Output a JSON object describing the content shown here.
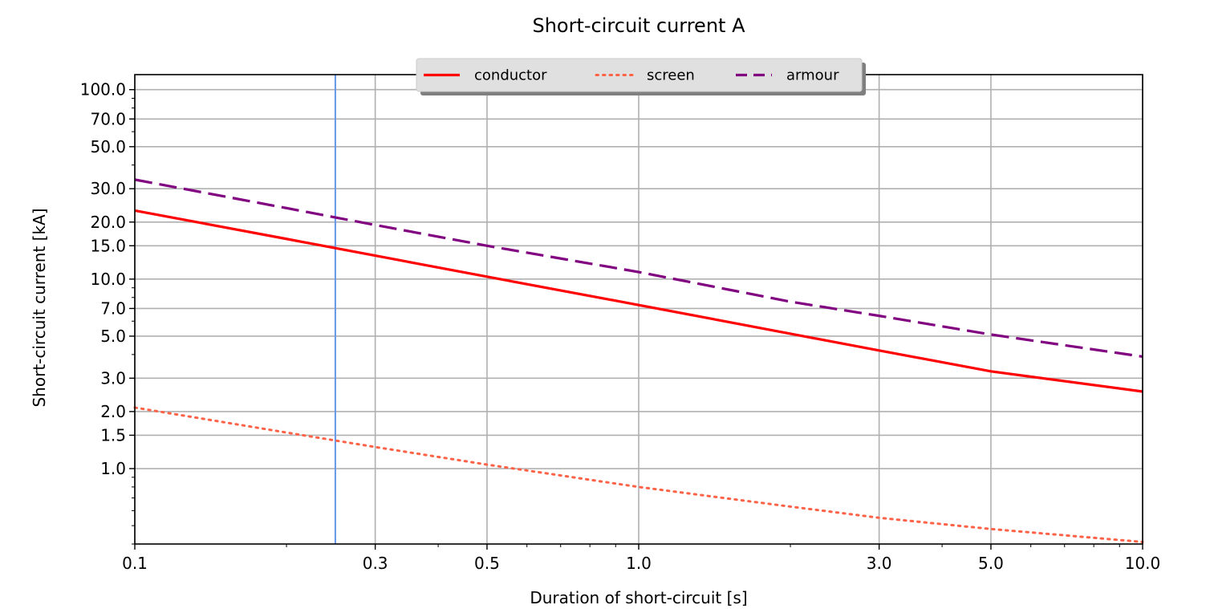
{
  "chart_data": {
    "type": "line",
    "title": "Short-circuit current A",
    "xlabel": "Duration of short-circuit [s]",
    "ylabel": "Short-circuit current [kA]",
    "x_scale": "log",
    "y_scale": "log",
    "xlim": [
      0.1,
      10.0
    ],
    "ylim": [
      0.4,
      120.0
    ],
    "x_ticks": [
      0.1,
      0.3,
      0.5,
      1.0,
      3.0,
      5.0,
      10.0
    ],
    "x_tick_labels": [
      "0.1",
      "0.3",
      "0.5",
      "1.0",
      "3.0",
      "5.0",
      "10.0"
    ],
    "y_ticks": [
      1.0,
      1.5,
      2.0,
      3.0,
      5.0,
      7.0,
      10.0,
      15.0,
      20.0,
      30.0,
      50.0,
      70.0,
      100.0
    ],
    "y_tick_labels": [
      "1.0",
      "1.5",
      "2.0",
      "3.0",
      "5.0",
      "7.0",
      "10.0",
      "15.0",
      "20.0",
      "30.0",
      "50.0",
      "70.0",
      "100.0"
    ],
    "grid": true,
    "legend_position": "top-center",
    "vertical_marker": {
      "x": 0.25,
      "color": "#6495ED"
    },
    "series": [
      {
        "name": "conductor",
        "color": "#FF0000",
        "style": "solid",
        "x": [
          0.1,
          0.2,
          0.3,
          0.5,
          1.0,
          2.0,
          3.0,
          5.0,
          10.0
        ],
        "y": [
          23.0,
          16.3,
          13.3,
          10.3,
          7.3,
          5.15,
          4.2,
          3.26,
          2.55
        ]
      },
      {
        "name": "screen",
        "color": "#FF6347",
        "style": "dotted",
        "x": [
          0.1,
          0.2,
          0.3,
          0.5,
          1.0,
          2.0,
          3.0,
          5.0,
          10.0
        ],
        "y": [
          2.1,
          1.55,
          1.3,
          1.05,
          0.8,
          0.63,
          0.55,
          0.48,
          0.41
        ]
      },
      {
        "name": "armour",
        "color": "#800080",
        "style": "dashed",
        "x": [
          0.1,
          0.2,
          0.3,
          0.5,
          1.0,
          2.0,
          3.0,
          5.0,
          10.0
        ],
        "y": [
          33.5,
          23.7,
          19.3,
          15.0,
          10.9,
          7.6,
          6.4,
          5.1,
          3.9
        ]
      }
    ]
  }
}
